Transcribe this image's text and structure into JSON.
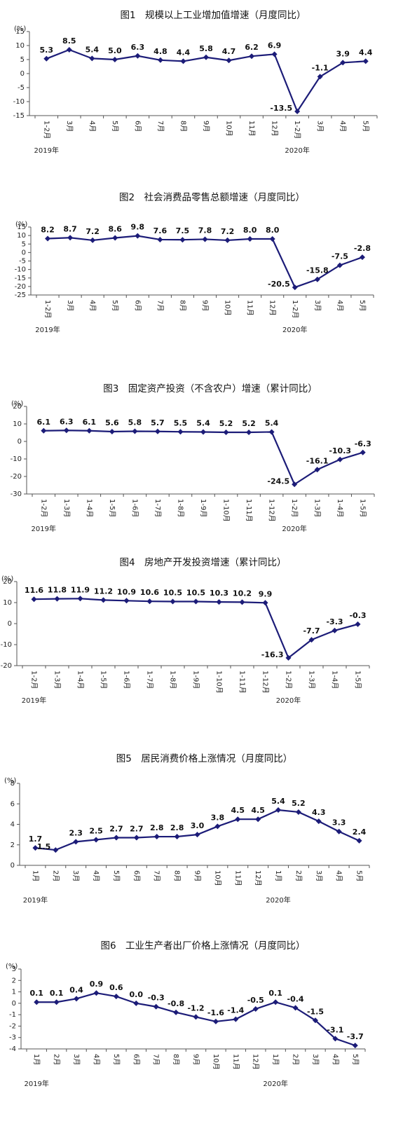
{
  "chart_data": [
    {
      "type": "line",
      "title": "图1　规模以上工业增加值增速（月度同比）",
      "y_unit": "(%)",
      "categories": [
        "1-2月",
        "3月",
        "4月",
        "5月",
        "6月",
        "7月",
        "8月",
        "9月",
        "10月",
        "11月",
        "12月",
        "1-2月",
        "3月",
        "4月",
        "5月"
      ],
      "values": [
        5.3,
        8.5,
        5.4,
        5.0,
        6.3,
        4.8,
        4.4,
        5.8,
        4.7,
        6.2,
        6.9,
        -13.5,
        -1.1,
        3.9,
        4.4
      ],
      "value_labels": [
        "5.3",
        "8.5",
        "5.4",
        "5.0",
        "6.3",
        "4.8",
        "4.4",
        "5.8",
        "4.7",
        "6.2",
        "6.9",
        "-13.5",
        "-1.1",
        "3.9",
        "4.4"
      ],
      "color": "#1c1c78",
      "ylim": [
        -15,
        15
      ],
      "yticks": [
        15,
        10,
        5,
        0,
        -5,
        -10,
        -15
      ],
      "year_labels": [
        "2019年",
        "2020年"
      ]
    },
    {
      "type": "line",
      "title": "图2　社会消费品零售总额增速（月度同比）",
      "y_unit": "(%)",
      "categories": [
        "1-2月",
        "3月",
        "4月",
        "5月",
        "6月",
        "7月",
        "8月",
        "9月",
        "10月",
        "11月",
        "12月",
        "1-2月",
        "3月",
        "4月",
        "5月"
      ],
      "values": [
        8.2,
        8.7,
        7.2,
        8.6,
        9.8,
        7.6,
        7.5,
        7.8,
        7.2,
        8.0,
        8.0,
        -20.5,
        -15.8,
        -7.5,
        -2.8
      ],
      "value_labels": [
        "8.2",
        "8.7",
        "7.2",
        "8.6",
        "9.8",
        "7.6",
        "7.5",
        "7.8",
        "7.2",
        "8.0",
        "8.0",
        "-20.5",
        "-15.8",
        "-7.5",
        "-2.8"
      ],
      "color": "#1c1c78",
      "ylim": [
        -25,
        15
      ],
      "yticks": [
        15,
        10,
        5,
        0,
        -5,
        -10,
        -15,
        -20,
        -25
      ],
      "year_labels": [
        "2019年",
        "2020年"
      ]
    },
    {
      "type": "line",
      "title": "图3　固定资产投资（不含农户）增速（累计同比）",
      "y_unit": "(%)",
      "categories": [
        "1-2月",
        "1-3月",
        "1-4月",
        "1-5月",
        "1-6月",
        "1-7月",
        "1-8月",
        "1-9月",
        "1-10月",
        "1-11月",
        "1-12月",
        "1-2月",
        "1-3月",
        "1-4月",
        "1-5月"
      ],
      "values": [
        6.1,
        6.3,
        6.1,
        5.6,
        5.8,
        5.7,
        5.5,
        5.4,
        5.2,
        5.2,
        5.4,
        -24.5,
        -16.1,
        -10.3,
        -6.3
      ],
      "value_labels": [
        "6.1",
        "6.3",
        "6.1",
        "5.6",
        "5.8",
        "5.7",
        "5.5",
        "5.4",
        "5.2",
        "5.2",
        "5.4",
        "-24.5",
        "-16.1",
        "-10.3",
        "-6.3"
      ],
      "color": "#1c1c78",
      "ylim": [
        -30,
        20
      ],
      "yticks": [
        20,
        10,
        0,
        -10,
        -20,
        -30
      ],
      "year_labels": [
        "2019年",
        "2020年"
      ]
    },
    {
      "type": "line",
      "title": "图4　房地产开发投资增速（累计同比）",
      "y_unit": "(%)",
      "categories": [
        "1-2月",
        "1-3月",
        "1-4月",
        "1-5月",
        "1-6月",
        "1-7月",
        "1-8月",
        "1-9月",
        "1-10月",
        "1-11月",
        "1-12月",
        "1-2月",
        "1-3月",
        "1-4月",
        "1-5月"
      ],
      "values": [
        11.6,
        11.8,
        11.9,
        11.2,
        10.9,
        10.6,
        10.5,
        10.5,
        10.3,
        10.2,
        9.9,
        -16.3,
        -7.7,
        -3.3,
        -0.3
      ],
      "value_labels": [
        "11.6",
        "11.8",
        "11.9",
        "11.2",
        "10.9",
        "10.6",
        "10.5",
        "10.5",
        "10.3",
        "10.2",
        "9.9",
        "-16.3",
        "-7.7",
        "-3.3",
        "-0.3"
      ],
      "color": "#1c1c78",
      "ylim": [
        -20,
        20
      ],
      "yticks": [
        20,
        10,
        0,
        -10,
        -20
      ],
      "year_labels": [
        "2019年",
        "2020年"
      ]
    },
    {
      "type": "line",
      "title": "图5　居民消费价格上涨情况（月度同比）",
      "y_unit": "(%)",
      "categories": [
        "1月",
        "2月",
        "3月",
        "4月",
        "5月",
        "6月",
        "7月",
        "8月",
        "9月",
        "10月",
        "11月",
        "12月",
        "1月",
        "2月",
        "3月",
        "4月",
        "5月"
      ],
      "values": [
        1.7,
        1.5,
        2.3,
        2.5,
        2.7,
        2.7,
        2.8,
        2.8,
        3.0,
        3.8,
        4.5,
        4.5,
        5.4,
        5.2,
        4.3,
        3.3,
        2.4
      ],
      "value_labels": [
        "1.7",
        "1.5",
        "2.3",
        "2.5",
        "2.7",
        "2.7",
        "2.8",
        "2.8",
        "3.0",
        "3.8",
        "4.5",
        "4.5",
        "5.4",
        "5.2",
        "4.3",
        "3.3",
        "2.4"
      ],
      "color": "#1c1c78",
      "ylim": [
        0,
        8
      ],
      "yticks": [
        8,
        6,
        4,
        2,
        0
      ],
      "year_labels": [
        "2019年",
        "2020年"
      ]
    },
    {
      "type": "line",
      "title": "图6　工业生产者出厂价格上涨情况（月度同比）",
      "y_unit": "(%)",
      "categories": [
        "1月",
        "2月",
        "3月",
        "4月",
        "5月",
        "6月",
        "7月",
        "8月",
        "9月",
        "10月",
        "11月",
        "12月",
        "1月",
        "2月",
        "3月",
        "4月",
        "5月"
      ],
      "values": [
        0.1,
        0.1,
        0.4,
        0.9,
        0.6,
        0.0,
        -0.3,
        -0.8,
        -1.2,
        -1.6,
        -1.4,
        -0.5,
        0.1,
        -0.4,
        -1.5,
        -3.1,
        -3.7
      ],
      "value_labels": [
        "0.1",
        "0.1",
        "0.4",
        "0.9",
        "0.6",
        "0.0",
        "-0.3",
        "-0.8",
        "-1.2",
        "-1.6",
        "-1.4",
        "-0.5",
        "0.1",
        "-0.4",
        "-1.5",
        "-3.1",
        "-3.7"
      ],
      "color": "#1c1c78",
      "ylim": [
        -4,
        3
      ],
      "yticks": [
        3,
        2,
        1,
        0,
        -1,
        -2,
        -3,
        -4
      ],
      "year_labels": [
        "2019年",
        "2020年"
      ]
    }
  ]
}
